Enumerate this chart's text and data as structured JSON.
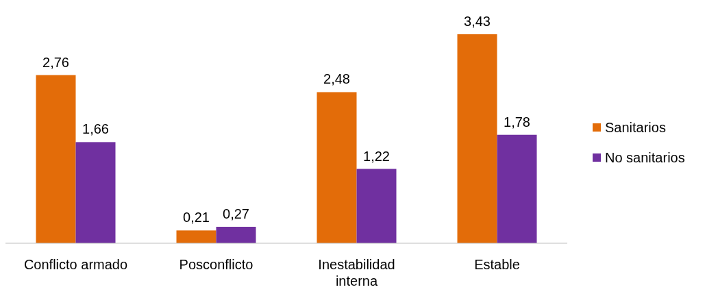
{
  "chart_data": {
    "type": "bar",
    "categories": [
      "Conflicto armado",
      "Posconflicto",
      "Inestabilidad interna",
      "Estable"
    ],
    "series": [
      {
        "name": "Sanitarios",
        "color": "#e36c09",
        "values": [
          2.76,
          0.21,
          2.48,
          3.43
        ],
        "value_labels": [
          "2,76",
          "0,21",
          "2,48",
          "3,43"
        ]
      },
      {
        "name": "No sanitarios",
        "color": "#7030a0",
        "values": [
          1.66,
          0.27,
          1.22,
          1.78
        ],
        "value_labels": [
          "1,66",
          "0,27",
          "1,22",
          "1,78"
        ]
      }
    ],
    "legend": "right"
  }
}
